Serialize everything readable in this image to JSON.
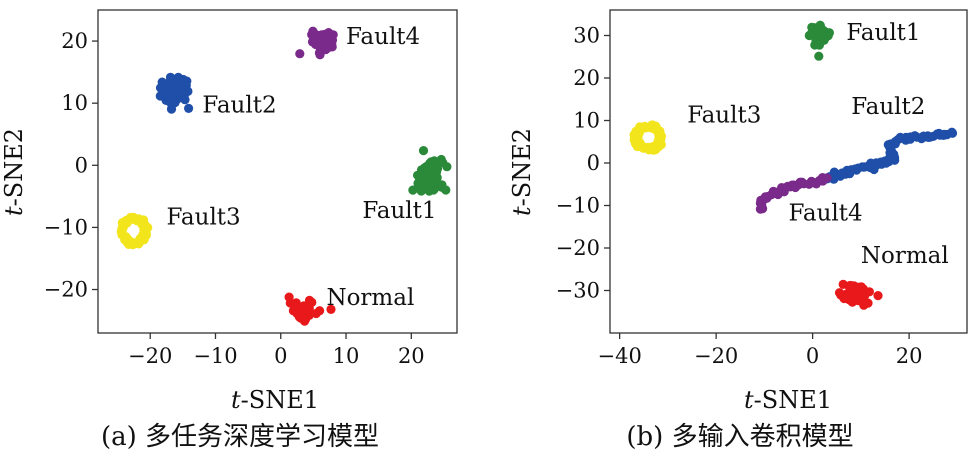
{
  "chart_data": [
    {
      "type": "scatter",
      "caption": "(a) 多任务深度学习模型",
      "xlabel_italic": "t",
      "xlabel_rest": "-SNE1",
      "ylabel_italic": "t",
      "ylabel_rest": "-SNE2",
      "xlim": [
        -28,
        27
      ],
      "ylim": [
        -27,
        25
      ],
      "xticks": [
        -20,
        -10,
        0,
        10,
        20
      ],
      "yticks": [
        -20,
        -10,
        0,
        10,
        20
      ],
      "xtick_labels": [
        "−20",
        "−10",
        "0",
        "10",
        "20"
      ],
      "ytick_labels": [
        "−20",
        "−10",
        "0",
        "10",
        "20"
      ],
      "grid": false,
      "series": [
        {
          "name": "Normal",
          "color": "#e8191b",
          "center": [
            3.5,
            -23.5
          ],
          "spread": [
            1.8,
            1.3
          ],
          "count": 40,
          "shape": "blob",
          "label_at": [
            7,
            -22.5
          ]
        },
        {
          "name": "Fault1",
          "color": "#2a8a3a",
          "center": [
            22.5,
            -2
          ],
          "spread": [
            2.0,
            2.2
          ],
          "count": 90,
          "shape": "blob",
          "label_at": [
            12.5,
            -8.5
          ]
        },
        {
          "name": "Fault2",
          "color": "#1f4fa8",
          "center": [
            -16,
            12
          ],
          "spread": [
            1.8,
            2.0
          ],
          "count": 70,
          "shape": "blob",
          "label_at": [
            -12,
            8.5
          ]
        },
        {
          "name": "Fault3",
          "color": "#f2e51c",
          "center": [
            -22.5,
            -10.5
          ],
          "spread": [
            2.0,
            2.2
          ],
          "count": 70,
          "shape": "ring",
          "label_at": [
            -17.5,
            -9.5
          ]
        },
        {
          "name": "Fault4",
          "color": "#7a2a8a",
          "center": [
            6.5,
            20
          ],
          "spread": [
            1.4,
            1.4
          ],
          "count": 60,
          "shape": "blob",
          "label_at": [
            10,
            19.5
          ]
        }
      ]
    },
    {
      "type": "scatter",
      "caption": "(b) 多输入卷积模型",
      "xlabel_italic": "t",
      "xlabel_rest": "-SNE1",
      "ylabel_italic": "t",
      "ylabel_rest": "-SNE2",
      "xlim": [
        -42,
        32
      ],
      "ylim": [
        -40,
        36
      ],
      "xticks": [
        -40,
        -20,
        0,
        20
      ],
      "yticks": [
        -30,
        -20,
        -10,
        0,
        10,
        20,
        30
      ],
      "xtick_labels": [
        "−40",
        "−20",
        "0",
        "20"
      ],
      "ytick_labels": [
        "−30",
        "−20",
        "−10",
        "0",
        "10",
        "20",
        "30"
      ],
      "grid": false,
      "series": [
        {
          "name": "Normal",
          "color": "#e8191b",
          "center": [
            9,
            -31
          ],
          "spread": [
            2.4,
            1.8
          ],
          "count": 70,
          "shape": "blob",
          "label_at": [
            10,
            -23.5
          ]
        },
        {
          "name": "Fault1",
          "color": "#2a8a3a",
          "center": [
            1.5,
            30
          ],
          "spread": [
            1.6,
            2.0
          ],
          "count": 60,
          "shape": "blob",
          "label_at": [
            7,
            29
          ]
        },
        {
          "name": "Fault2",
          "color": "#1f4fa8",
          "center": [
            14,
            1
          ],
          "spread": [
            0,
            0
          ],
          "count": 0,
          "shape": "path",
          "label_at": [
            8,
            11.5
          ],
          "path": [
            [
              3,
              -3.5
            ],
            [
              8,
              -2
            ],
            [
              14,
              0
            ],
            [
              17,
              1
            ],
            [
              16,
              4
            ],
            [
              18,
              5.5
            ],
            [
              22,
              6
            ],
            [
              26,
              6.5
            ],
            [
              29,
              7
            ]
          ]
        },
        {
          "name": "Fault3",
          "color": "#f2e51c",
          "center": [
            -34,
            6
          ],
          "spread": [
            2.8,
            3.0
          ],
          "count": 70,
          "shape": "ring",
          "label_at": [
            -26,
            9.5
          ]
        },
        {
          "name": "Fault4",
          "color": "#7a2a8a",
          "center": [
            -5,
            -6
          ],
          "spread": [
            0,
            0
          ],
          "count": 0,
          "shape": "path",
          "label_at": [
            -5,
            -13.5
          ],
          "path": [
            [
              -10.5,
              -10.5
            ],
            [
              -11,
              -9.5
            ],
            [
              -9,
              -7.5
            ],
            [
              -6,
              -6
            ],
            [
              -3,
              -5
            ],
            [
              0,
              -4.5
            ],
            [
              3,
              -3.5
            ]
          ]
        }
      ]
    }
  ]
}
